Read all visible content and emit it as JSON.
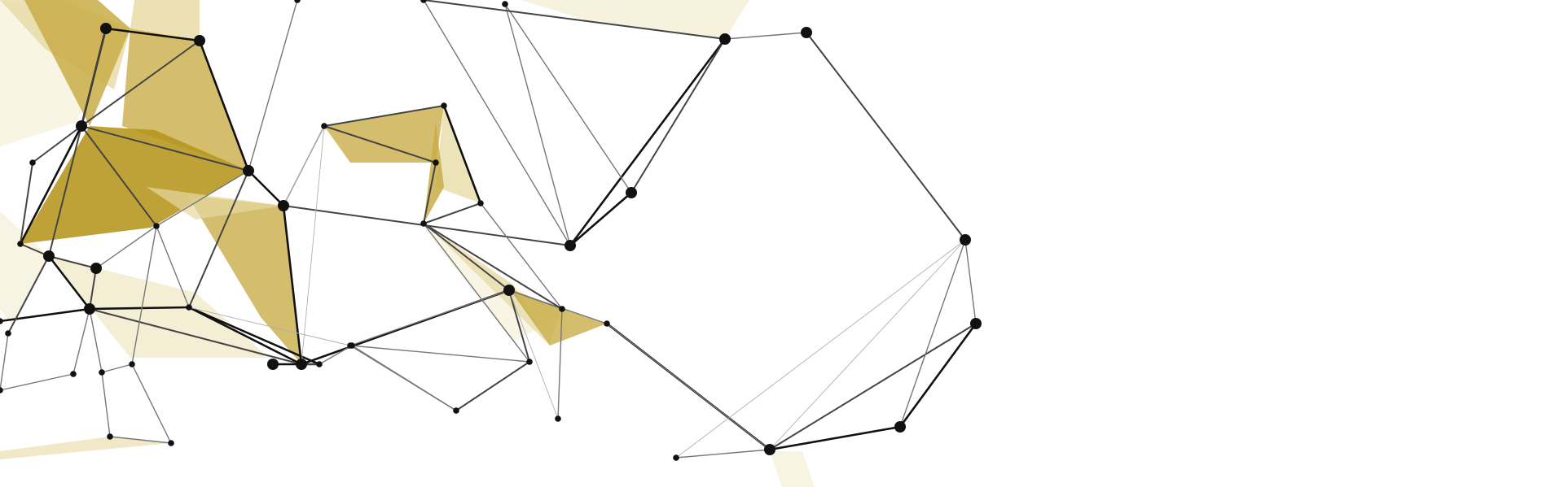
{
  "artwork": {
    "subject": "low-poly-network",
    "background_color": "#ffffff",
    "node_color": "#111111",
    "line_colors": [
      "#111111",
      "#444444",
      "#777777",
      "#b0b0b0"
    ],
    "fill_colors": {
      "gold_dark": "#b5951c",
      "gold_mid": "#c9ad47",
      "gold_light": "#e6d9a2",
      "gold_pale": "#f3ecd0"
    }
  }
}
